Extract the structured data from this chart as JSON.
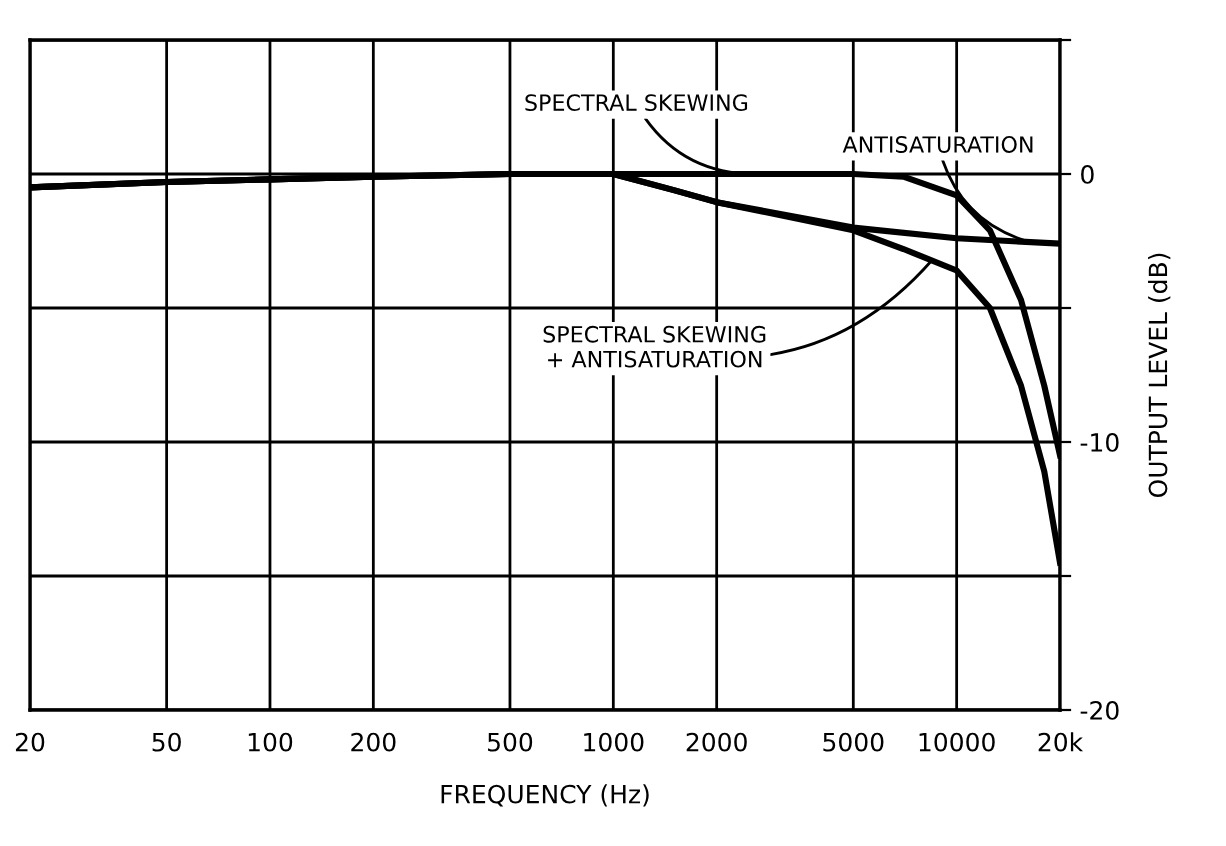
{
  "chart_data": {
    "type": "line",
    "xlabel": "FREQUENCY (Hz)",
    "ylabel": "OUTPUT LEVEL (dB)",
    "log": "x",
    "xlim": [
      20,
      20000
    ],
    "xticks": [
      20,
      50,
      100,
      200,
      500,
      1000,
      2000,
      5000,
      10000,
      {
        "value": 20000,
        "label": "20k"
      }
    ],
    "ylim": [
      -20,
      5
    ],
    "yticks": [
      {
        "value": 5,
        "label": null
      },
      0,
      {
        "value": -5,
        "label": null
      },
      -10,
      {
        "value": -15,
        "label": null
      },
      -20
    ],
    "grid": true,
    "legend": false,
    "marker": "none",
    "line_style": "solid",
    "series": [
      {
        "color": "#000000",
        "x": [
          20,
          50,
          100,
          200,
          500,
          1000,
          2000,
          5000,
          7000,
          10000,
          12500,
          15400,
          18000,
          20000
        ],
        "values": [
          -0.5,
          -0.3,
          -0.2,
          -0.1,
          0,
          0,
          0,
          0,
          -0.1,
          -0.8,
          -2.1,
          -4.7,
          -7.9,
          -10.5
        ]
      },
      {
        "color": "#000000",
        "x": [
          20,
          50,
          100,
          200,
          500,
          1000,
          1500,
          2000,
          5000,
          10000,
          20000
        ],
        "values": [
          -0.5,
          -0.3,
          -0.2,
          -0.1,
          0,
          0,
          -0.6,
          -1.05,
          -2.0,
          -2.4,
          -2.6
        ]
      },
      {
        "color": "#000000",
        "x": [
          20,
          50,
          100,
          200,
          500,
          1000,
          1500,
          2000,
          5000,
          7000,
          10000,
          12500,
          15400,
          18000,
          20000
        ],
        "values": [
          -0.5,
          -0.3,
          -0.2,
          -0.1,
          0,
          0,
          -0.6,
          -1.05,
          -2.1,
          -2.8,
          -3.6,
          -5.0,
          -7.9,
          -11.1,
          -14.5
        ]
      }
    ],
    "annotations": [
      {
        "text": "SPECTRAL SKEWING",
        "x": 2700,
        "y": 0
      },
      {
        "text": "ANTISATURATION",
        "x": 17000,
        "y": -2.6
      },
      {
        "text": "SPECTRAL SKEWING\n+ ANTISATURATION",
        "x": 8500,
        "y": -3.2
      }
    ]
  }
}
